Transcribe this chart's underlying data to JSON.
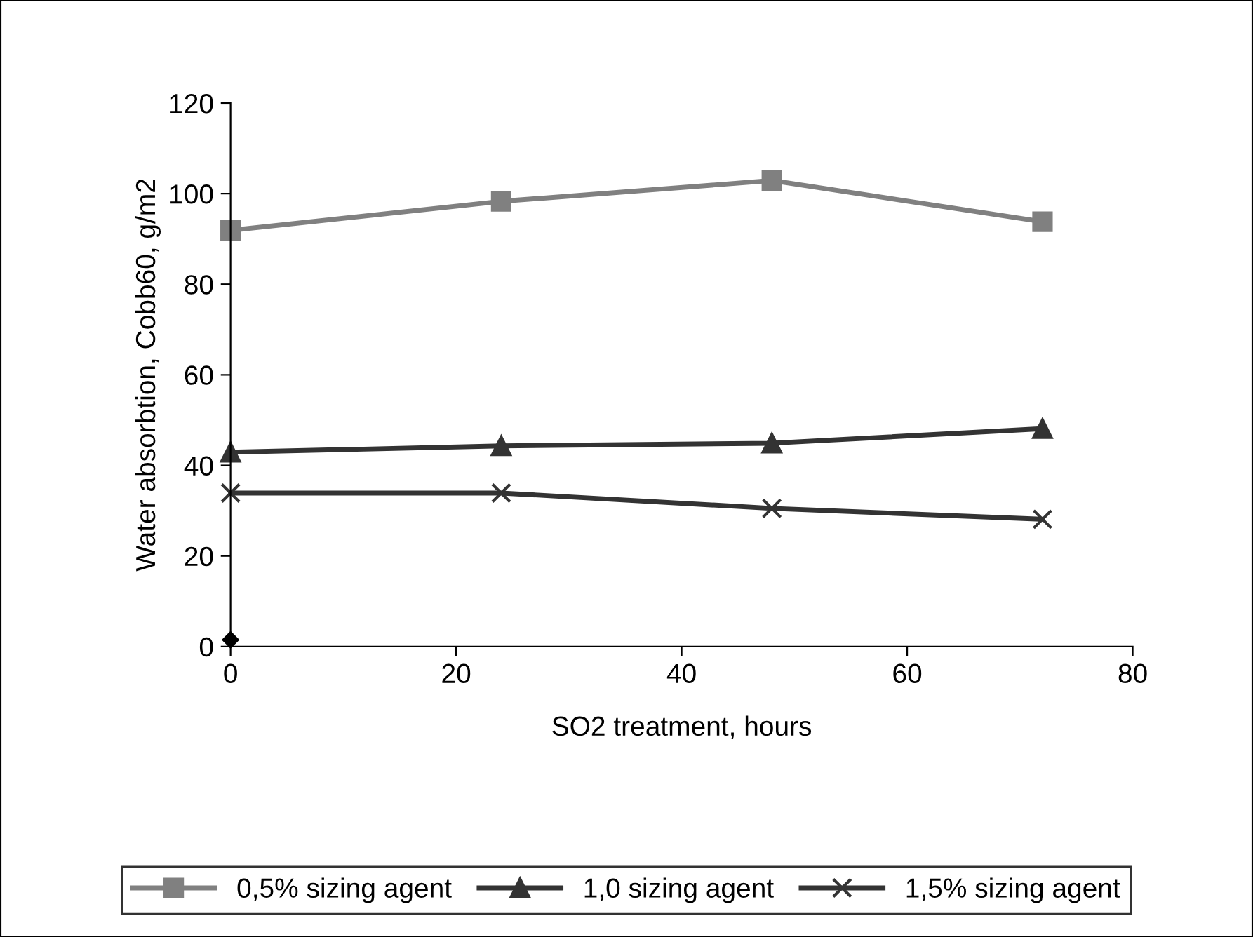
{
  "chart_data": {
    "type": "line",
    "xlabel": "SO2 treatment, hours",
    "ylabel": "Water absorbtion, Cobb60, g/m2",
    "x": [
      0,
      24,
      48,
      72
    ],
    "series": [
      {
        "name": "0,5% sizing agent",
        "color": "#808080",
        "marker": "square",
        "values": [
          91.9,
          98.3,
          102.9,
          93.8
        ]
      },
      {
        "name": "1,0 sizing agent",
        "color": "#333333",
        "marker": "triangle",
        "values": [
          42.9,
          44.3,
          44.9,
          48.1
        ]
      },
      {
        "name": "1,5% sizing agent",
        "color": "#333333",
        "marker": "cross",
        "values": [
          33.9,
          33.9,
          30.5,
          28.1
        ]
      },
      {
        "type": "scatter",
        "color": "#000000",
        "marker": "diamond",
        "x": [
          0
        ],
        "values": [
          1.5
        ]
      }
    ],
    "xlim": [
      0,
      80
    ],
    "xticks": [
      0,
      20,
      40,
      60,
      80
    ],
    "ylim": [
      0,
      120
    ],
    "yticks": [
      0,
      20,
      40,
      60,
      80,
      100,
      120
    ],
    "grid": false,
    "legend": "bottom",
    "line_style": "solid"
  }
}
